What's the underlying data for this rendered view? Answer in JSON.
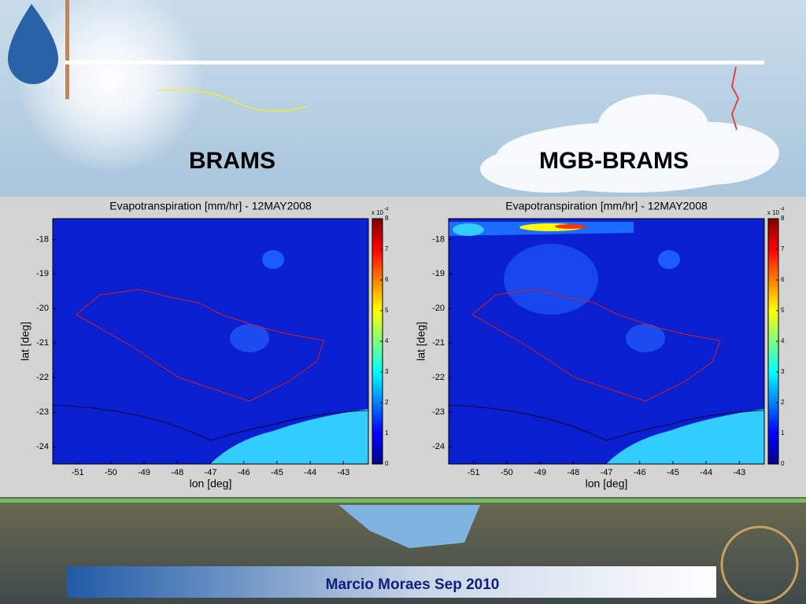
{
  "headings": [
    "BRAMS",
    "MGB-BRAMS"
  ],
  "footer": "Marcio Moraes Sep 2010",
  "chart_data": [
    {
      "type": "heatmap",
      "title": "Evapotranspiration [mm/hr] - 12MAY2008",
      "x_label": "lon [deg]",
      "y_label": "lat [deg]",
      "xlim": [
        -51.75,
        -42.25
      ],
      "xticks": [
        -51,
        -50,
        -49,
        -48,
        -47,
        -46,
        -45,
        -44,
        -43
      ],
      "ylim": [
        -24.5,
        -17.4
      ],
      "yticks": [
        -18,
        -19,
        -20,
        -21,
        -22,
        -23,
        -24
      ],
      "clim": [
        0,
        8
      ],
      "cticks": [
        0,
        1,
        2,
        3,
        4,
        5,
        6,
        7,
        8
      ],
      "colorbar_multiplier": "x 10",
      "colorbar_exponent": "-4"
    },
    {
      "type": "heatmap",
      "title": "Evapotranspiration [mm/hr] - 12MAY2008",
      "x_label": "lon [deg]",
      "y_label": "lat [deg]",
      "xlim": [
        -51.75,
        -42.25
      ],
      "xticks": [
        -51,
        -50,
        -49,
        -48,
        -47,
        -46,
        -45,
        -44,
        -43
      ],
      "ylim": [
        -24.5,
        -17.4
      ],
      "yticks": [
        -18,
        -19,
        -20,
        -21,
        -22,
        -23,
        -24
      ],
      "clim": [
        0,
        8
      ],
      "cticks": [
        0,
        1,
        2,
        3,
        4,
        5,
        6,
        7,
        8
      ],
      "colorbar_multiplier": "x 10",
      "colorbar_exponent": "-4"
    }
  ]
}
